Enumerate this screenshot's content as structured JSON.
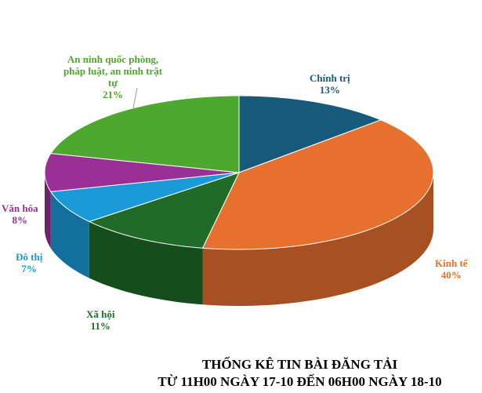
{
  "chart_data": {
    "type": "pie",
    "style": "3d",
    "title_line1": "THỐNG KÊ TIN BÀI ĐĂNG TẢI",
    "title_line2": "TỪ 11H00 NGÀY 17-10 ĐẾN 06H00 NGÀY 18-10",
    "slices": [
      {
        "label": "Chính trị",
        "value": 13,
        "value_label": "13%",
        "color": "#175a7c"
      },
      {
        "label": "Kinh tế",
        "value": 40,
        "value_label": "40%",
        "color": "#e8702f"
      },
      {
        "label": "Xã hội",
        "value": 11,
        "value_label": "11%",
        "color": "#1f6b27"
      },
      {
        "label": "Đô thị",
        "value": 7,
        "value_label": "7%",
        "color": "#1b9ad8"
      },
      {
        "label": "Văn hóa",
        "value": 8,
        "value_label": "8%",
        "color": "#9a2f96"
      },
      {
        "label": "An ninh quốc phòng, pháp luật, an ninh trật tự",
        "value": 21,
        "value_label": "21%",
        "color": "#4ea72e"
      }
    ]
  }
}
